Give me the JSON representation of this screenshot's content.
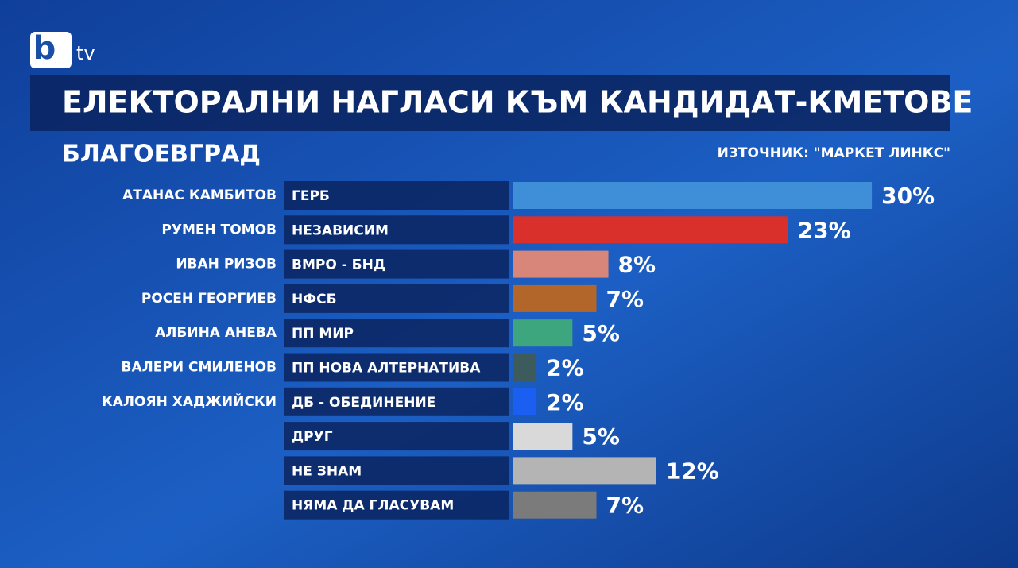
{
  "chart_data": {
    "type": "bar",
    "orientation": "horizontal",
    "logo": {
      "mark": "b",
      "text": "tv"
    },
    "title": "ЕЛЕКТОРАЛНИ НАГЛАСИ КЪМ КАНДИДАТ-КМЕТОВЕ",
    "subtitle": "БЛАГОЕВГРАД",
    "source": "ИЗТОЧНИК: \"МАРКЕТ ЛИНКС\"",
    "candidates": [
      "АТАНАС КАМБИТОВ",
      "РУМЕН ТОМОВ",
      "ИВАН РИЗОВ",
      "РОСЕН ГЕОРГИЕВ",
      "АЛБИНА АНЕВА",
      "ВАЛЕРИ СМИЛЕНОВ",
      "КАЛОЯН ХАДЖИЙСКИ",
      null,
      null,
      null
    ],
    "categories": [
      "ГЕРБ",
      "НЕЗАВИСИМ",
      "ВМРО - БНД",
      "НФСБ",
      "ПП МИР",
      "ПП НОВА АЛТЕРНАТИВА",
      "ДБ - ОБЕДИНЕНИЕ",
      "ДРУГ",
      "НЕ ЗНАМ",
      "НЯМА ДА ГЛАСУВАМ"
    ],
    "values": [
      30,
      23,
      8,
      7,
      5,
      2,
      2,
      5,
      12,
      7
    ],
    "value_labels": [
      "30%",
      "23%",
      "8%",
      "7%",
      "5%",
      "2%",
      "2%",
      "5%",
      "12%",
      "7%"
    ],
    "colors": [
      "#3f8fd8",
      "#d9302c",
      "#d8857a",
      "#b3662a",
      "#3ea67e",
      "#3d5a5c",
      "#1b5ff2",
      "#d9d9d9",
      "#b4b4b4",
      "#7b7b7b"
    ]
  }
}
